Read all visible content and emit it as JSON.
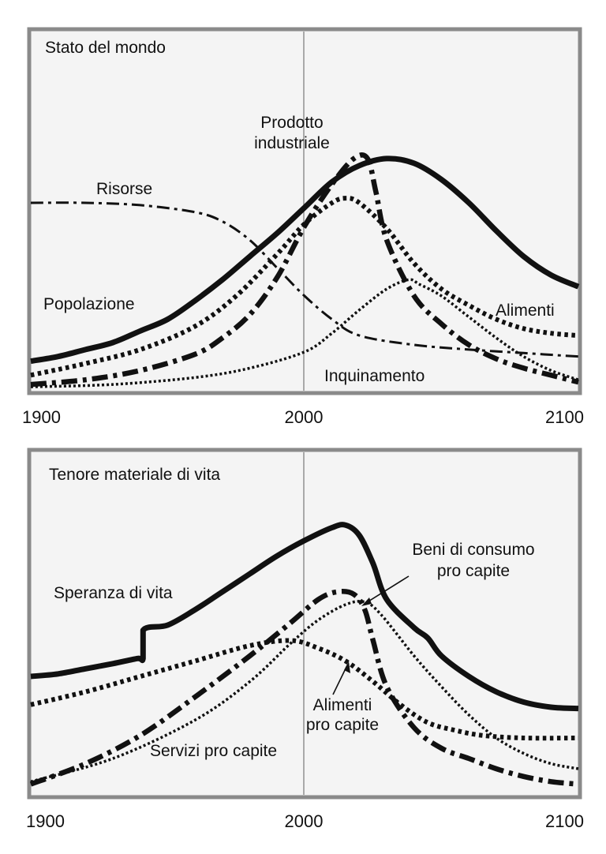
{
  "chart_data": [
    {
      "type": "line",
      "title": "Stato del mondo",
      "xlabel": "",
      "ylabel": "",
      "xlim": [
        1900,
        2100
      ],
      "ylim": [
        0,
        100
      ],
      "reference_line_x": 2000,
      "x_ticks": [
        "1900",
        "2000",
        "2100"
      ],
      "series": [
        {
          "name": "Popolazione",
          "style": "solid-thick",
          "points": [
            [
              1900,
              12
            ],
            [
              1910,
              14
            ],
            [
              1920,
              17
            ],
            [
              1930,
              20
            ],
            [
              1940,
              25
            ],
            [
              1950,
              30
            ],
            [
              1960,
              38
            ],
            [
              1970,
              47
            ],
            [
              1980,
              57
            ],
            [
              1990,
              67
            ],
            [
              2000,
              78
            ],
            [
              2010,
              89
            ],
            [
              2020,
              96
            ],
            [
              2030,
              99
            ],
            [
              2040,
              97
            ],
            [
              2050,
              90
            ],
            [
              2060,
              80
            ],
            [
              2070,
              68
            ],
            [
              2080,
              57
            ],
            [
              2090,
              49
            ],
            [
              2100,
              44
            ]
          ]
        },
        {
          "name": "Prodotto industriale",
          "style": "dash-dot-thick",
          "points": [
            [
              1900,
              2
            ],
            [
              1920,
              4
            ],
            [
              1940,
              8
            ],
            [
              1960,
              15
            ],
            [
              1970,
              22
            ],
            [
              1980,
              32
            ],
            [
              1990,
              48
            ],
            [
              2000,
              70
            ],
            [
              2010,
              88
            ],
            [
              2018,
              99
            ],
            [
              2023,
              99
            ],
            [
              2026,
              85
            ],
            [
              2030,
              64
            ],
            [
              2040,
              40
            ],
            [
              2050,
              28
            ],
            [
              2060,
              19
            ],
            [
              2070,
              13
            ],
            [
              2080,
              9
            ],
            [
              2090,
              6
            ],
            [
              2100,
              3
            ]
          ]
        },
        {
          "name": "Alimenti",
          "style": "dotted-thick",
          "points": [
            [
              1900,
              6
            ],
            [
              1920,
              11
            ],
            [
              1940,
              17
            ],
            [
              1960,
              27
            ],
            [
              1975,
              40
            ],
            [
              1990,
              58
            ],
            [
              2000,
              71
            ],
            [
              2010,
              80
            ],
            [
              2015,
              82
            ],
            [
              2020,
              80
            ],
            [
              2030,
              69
            ],
            [
              2040,
              54
            ],
            [
              2050,
              43
            ],
            [
              2060,
              36
            ],
            [
              2070,
              30
            ],
            [
              2080,
              26
            ],
            [
              2090,
              24
            ],
            [
              2100,
              23
            ]
          ]
        },
        {
          "name": "Risorse",
          "style": "dash-dot-thin",
          "points": [
            [
              1900,
              80
            ],
            [
              1920,
              80
            ],
            [
              1940,
              79
            ],
            [
              1960,
              76
            ],
            [
              1970,
              72
            ],
            [
              1980,
              64
            ],
            [
              1990,
              52
            ],
            [
              2000,
              40
            ],
            [
              2010,
              30
            ],
            [
              2020,
              23
            ],
            [
              2040,
              19
            ],
            [
              2060,
              17
            ],
            [
              2080,
              15.5
            ],
            [
              2100,
              14
            ]
          ]
        },
        {
          "name": "Inquinamento",
          "style": "dotted-thin",
          "points": [
            [
              1900,
              1
            ],
            [
              1930,
              2
            ],
            [
              1960,
              5
            ],
            [
              1980,
              9
            ],
            [
              2000,
              16
            ],
            [
              2010,
              24
            ],
            [
              2020,
              34
            ],
            [
              2030,
              43
            ],
            [
              2038,
              47
            ],
            [
              2042,
              45
            ],
            [
              2050,
              40
            ],
            [
              2060,
              31
            ],
            [
              2070,
              22
            ],
            [
              2080,
              14
            ],
            [
              2090,
              8
            ],
            [
              2100,
              4
            ]
          ]
        }
      ],
      "labels": {
        "popolazione": "Popolazione",
        "prodotto_1": "Prodotto",
        "prodotto_2": "industriale",
        "alimenti": "Alimenti",
        "risorse": "Risorse",
        "inquinamento": "Inquinamento"
      }
    },
    {
      "type": "line",
      "title": "Tenore materiale di vita",
      "xlabel": "",
      "ylabel": "",
      "xlim": [
        1900,
        2100
      ],
      "ylim": [
        0,
        100
      ],
      "reference_line_x": 2000,
      "x_ticks": [
        "1900",
        "2000",
        "2100"
      ],
      "series": [
        {
          "name": "Speranza di vita",
          "style": "solid-thick",
          "points": [
            [
              1900,
              44
            ],
            [
              1910,
              45
            ],
            [
              1920,
              47
            ],
            [
              1930,
              49
            ],
            [
              1939,
              51
            ],
            [
              1941,
              51
            ],
            [
              1941,
              62
            ],
            [
              1950,
              64
            ],
            [
              1960,
              70
            ],
            [
              1970,
              77
            ],
            [
              1980,
              84
            ],
            [
              1990,
              91
            ],
            [
              2000,
              97
            ],
            [
              2010,
              102
            ],
            [
              2015,
              103
            ],
            [
              2020,
              99
            ],
            [
              2025,
              88
            ],
            [
              2030,
              74
            ],
            [
              2040,
              63
            ],
            [
              2045,
              59
            ],
            [
              2050,
              52
            ],
            [
              2060,
              44
            ],
            [
              2070,
              38
            ],
            [
              2080,
              34
            ],
            [
              2090,
              32
            ],
            [
              2100,
              31.5
            ]
          ]
        },
        {
          "name": "Beni di consumo pro capite",
          "style": "dash-dot-thick",
          "points": [
            [
              1900,
              2
            ],
            [
              1920,
              10
            ],
            [
              1940,
              21
            ],
            [
              1960,
              36
            ],
            [
              1980,
              52
            ],
            [
              1995,
              65
            ],
            [
              2005,
              74
            ],
            [
              2012,
              77
            ],
            [
              2018,
              76
            ],
            [
              2022,
              70
            ],
            [
              2025,
              58
            ],
            [
              2030,
              40
            ],
            [
              2040,
              24
            ],
            [
              2050,
              16
            ],
            [
              2060,
              12
            ],
            [
              2070,
              8
            ],
            [
              2080,
              5
            ],
            [
              2090,
              3
            ],
            [
              2100,
              2
            ]
          ]
        },
        {
          "name": "Alimenti pro capite",
          "style": "dotted-thick",
          "points": [
            [
              1900,
              33
            ],
            [
              1920,
              38
            ],
            [
              1940,
              44
            ],
            [
              1960,
              50
            ],
            [
              1980,
              56
            ],
            [
              1995,
              58
            ],
            [
              2005,
              55
            ],
            [
              2015,
              50
            ],
            [
              2025,
              42
            ],
            [
              2035,
              33
            ],
            [
              2045,
              26
            ],
            [
              2055,
              23
            ],
            [
              2065,
              21
            ],
            [
              2080,
              20
            ],
            [
              2100,
              20
            ]
          ]
        },
        {
          "name": "Servizi pro capite",
          "style": "dotted-thin",
          "points": [
            [
              1900,
              3
            ],
            [
              1930,
              12
            ],
            [
              1960,
              27
            ],
            [
              1980,
              42
            ],
            [
              1995,
              57
            ],
            [
              2005,
              66
            ],
            [
              2015,
              72
            ],
            [
              2022,
              73
            ],
            [
              2028,
              68
            ],
            [
              2040,
              52
            ],
            [
              2050,
              40
            ],
            [
              2060,
              29
            ],
            [
              2070,
              20
            ],
            [
              2080,
              14
            ],
            [
              2090,
              10
            ],
            [
              2100,
              8
            ]
          ]
        }
      ],
      "labels": {
        "speranza": "Speranza di vita",
        "beni_1": "Beni di consumo",
        "beni_2": "pro capite",
        "alimenti_1": "Alimenti",
        "alimenti_2": "pro capite",
        "servizi": "Servizi pro capite"
      }
    }
  ]
}
